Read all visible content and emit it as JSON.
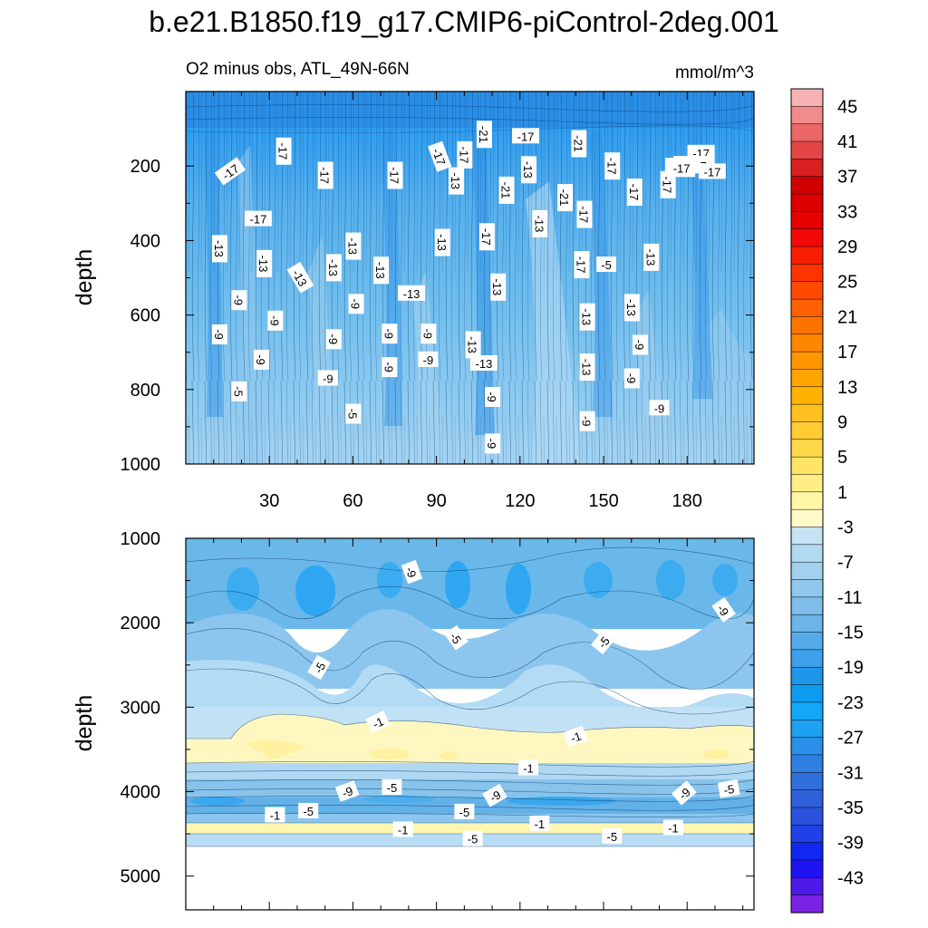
{
  "title": "b.e21.B1850.f19_g17.CMIP6-piControl-2deg.001",
  "chart_data": {
    "type": "contour",
    "title": "b.e21.B1850.f19_g17.CMIP6-piControl-2deg.001",
    "subtitle_left": "O2 minus obs, ATL_49N-66N",
    "units": "mmol/m^3",
    "xlim": [
      0,
      204
    ],
    "colorbar": {
      "levels": [
        -45,
        -43,
        -41,
        -39,
        -37,
        -35,
        -33,
        -31,
        -29,
        -27,
        -25,
        -23,
        -21,
        -19,
        -17,
        -15,
        -13,
        -11,
        -9,
        -7,
        -5,
        -3,
        -1,
        1,
        3,
        5,
        7,
        9,
        11,
        13,
        15,
        17,
        19,
        21,
        23,
        25,
        27,
        29,
        31,
        33,
        35,
        37,
        39,
        41,
        43,
        45
      ],
      "tick_labels": [
        "45",
        "41",
        "37",
        "33",
        "29",
        "25",
        "21",
        "17",
        "13",
        "9",
        "5",
        "1",
        "-3",
        "-7",
        "-11",
        "-15",
        "-19",
        "-23",
        "-27",
        "-31",
        "-35",
        "-39",
        "-43"
      ],
      "colors_top_to_bottom": [
        "#f7b3b3",
        "#f28c8c",
        "#eb6666",
        "#e34444",
        "#d92020",
        "#d10000",
        "#dc0000",
        "#e80000",
        "#f20808",
        "#fa1e00",
        "#ff3300",
        "#ff4a00",
        "#ff6000",
        "#ff7400",
        "#ff8600",
        "#ff9600",
        "#ffa500",
        "#ffb300",
        "#ffc020",
        "#ffcc33",
        "#ffd84a",
        "#ffe466",
        "#ffee85",
        "#fff6a8",
        "#fffbc8",
        "#c6e3f5",
        "#b2d9f2",
        "#a2d0ee",
        "#90c7ec",
        "#7ebdea",
        "#6bb4ea",
        "#55abea",
        "#3ca1ea",
        "#1e96ea",
        "#0e9cf0",
        "#12a8f5",
        "#1ca2f0",
        "#2a90e8",
        "#2f7fe0",
        "#3070dc",
        "#2f62da",
        "#2a52dc",
        "#2040e8",
        "#1028f0",
        "#1d14f2",
        "#4d1ae8",
        "#7a22e6"
      ]
    },
    "panels": [
      {
        "ylabel": "depth",
        "ylim": [
          1000,
          0
        ],
        "x_ticks": [
          30,
          60,
          90,
          120,
          150,
          180
        ],
        "y_ticks": [
          200,
          400,
          600,
          800,
          1000
        ],
        "contour_labels": [
          {
            "x": 16,
            "y": 215,
            "t": "-17",
            "r": -35
          },
          {
            "x": 35,
            "y": 160,
            "t": "-17",
            "r": 90
          },
          {
            "x": 26,
            "y": 342,
            "t": "-17",
            "r": 0
          },
          {
            "x": 12,
            "y": 422,
            "t": "-13",
            "r": 90
          },
          {
            "x": 28,
            "y": 462,
            "t": "-13",
            "r": 90
          },
          {
            "x": 41,
            "y": 500,
            "t": "-13",
            "r": 60
          },
          {
            "x": 19,
            "y": 560,
            "t": "-9",
            "r": 90
          },
          {
            "x": 12,
            "y": 652,
            "t": "-9",
            "r": 90
          },
          {
            "x": 32,
            "y": 615,
            "t": "-9",
            "r": 90
          },
          {
            "x": 27,
            "y": 720,
            "t": "-9",
            "r": 90
          },
          {
            "x": 19,
            "y": 805,
            "t": "-5",
            "r": 90
          },
          {
            "x": 50,
            "y": 225,
            "t": "-17",
            "r": 90
          },
          {
            "x": 60,
            "y": 415,
            "t": "-13",
            "r": 90
          },
          {
            "x": 53,
            "y": 473,
            "t": "-13",
            "r": 90
          },
          {
            "x": 61,
            "y": 570,
            "t": "-9",
            "r": 90
          },
          {
            "x": 53,
            "y": 665,
            "t": "-9",
            "r": 90
          },
          {
            "x": 51,
            "y": 770,
            "t": "-9",
            "r": 0
          },
          {
            "x": 60,
            "y": 865,
            "t": "-5",
            "r": 90
          },
          {
            "x": 75,
            "y": 225,
            "t": "-17",
            "r": 90
          },
          {
            "x": 70,
            "y": 480,
            "t": "-13",
            "r": 90
          },
          {
            "x": 81,
            "y": 542,
            "t": "-13",
            "r": 0
          },
          {
            "x": 73,
            "y": 650,
            "t": "-9",
            "r": 90
          },
          {
            "x": 73,
            "y": 740,
            "t": "-9",
            "r": 90
          },
          {
            "x": 91,
            "y": 175,
            "t": "-17",
            "r": 70
          },
          {
            "x": 100,
            "y": 170,
            "t": "-17",
            "r": 90
          },
          {
            "x": 97,
            "y": 240,
            "t": "-13",
            "r": 90
          },
          {
            "x": 92,
            "y": 405,
            "t": "-13",
            "r": 90
          },
          {
            "x": 87,
            "y": 650,
            "t": "-9",
            "r": 90
          },
          {
            "x": 87,
            "y": 720,
            "t": "-9",
            "r": 0
          },
          {
            "x": 107,
            "y": 115,
            "t": "-21",
            "r": 90
          },
          {
            "x": 108,
            "y": 390,
            "t": "-17",
            "r": 90
          },
          {
            "x": 103,
            "y": 680,
            "t": "-13",
            "r": 90
          },
          {
            "x": 107,
            "y": 730,
            "t": "-13",
            "r": 0
          },
          {
            "x": 112,
            "y": 525,
            "t": "-13",
            "r": 90
          },
          {
            "x": 110,
            "y": 820,
            "t": "-9",
            "r": 90
          },
          {
            "x": 110,
            "y": 945,
            "t": "-9",
            "r": 90
          },
          {
            "x": 122,
            "y": 120,
            "t": "-17",
            "r": 0
          },
          {
            "x": 123,
            "y": 210,
            "t": "-13",
            "r": 90
          },
          {
            "x": 115,
            "y": 265,
            "t": "-21",
            "r": 90
          },
          {
            "x": 127,
            "y": 355,
            "t": "-13",
            "r": 90
          },
          {
            "x": 141,
            "y": 140,
            "t": "-21",
            "r": 90
          },
          {
            "x": 136,
            "y": 285,
            "t": "-21",
            "r": 90
          },
          {
            "x": 143,
            "y": 330,
            "t": "-17",
            "r": 90
          },
          {
            "x": 142,
            "y": 465,
            "t": "-17",
            "r": 90
          },
          {
            "x": 151,
            "y": 465,
            "t": "-5",
            "r": 0
          },
          {
            "x": 144,
            "y": 605,
            "t": "-13",
            "r": 90
          },
          {
            "x": 144,
            "y": 740,
            "t": "-13",
            "r": 90
          },
          {
            "x": 144,
            "y": 885,
            "t": "-9",
            "r": 90
          },
          {
            "x": 153,
            "y": 200,
            "t": "-17",
            "r": 90
          },
          {
            "x": 167,
            "y": 445,
            "t": "-13",
            "r": 90
          },
          {
            "x": 161,
            "y": 270,
            "t": "-17",
            "r": 90
          },
          {
            "x": 160,
            "y": 580,
            "t": "-13",
            "r": 90
          },
          {
            "x": 163,
            "y": 680,
            "t": "-9",
            "r": 90
          },
          {
            "x": 160,
            "y": 770,
            "t": "-9",
            "r": 90
          },
          {
            "x": 170,
            "y": 850,
            "t": "-9",
            "r": 0
          },
          {
            "x": 177,
            "y": 200,
            "t": "-17",
            "r": 0
          },
          {
            "x": 173,
            "y": 250,
            "t": "-17",
            "r": 90
          },
          {
            "x": 179,
            "y": 200,
            "t": "-17",
            "r": 0
          },
          {
            "x": 185,
            "y": 165,
            "t": "-17",
            "r": 0
          },
          {
            "x": 185,
            "y": 195,
            "t": "-17",
            "r": 0
          },
          {
            "x": 178,
            "y": 210,
            "t": "-17",
            "r": 0
          },
          {
            "x": 184,
            "y": 200,
            "t": "-17",
            "r": 0
          },
          {
            "x": 180,
            "y": 195,
            "t": "-17",
            "r": 0
          },
          {
            "x": 178,
            "y": 205,
            "t": "-17",
            "r": 0
          },
          {
            "x": 189,
            "y": 215,
            "t": "-17",
            "r": 0
          }
        ]
      },
      {
        "ylabel": "depth",
        "ylim": [
          5400,
          1000
        ],
        "x_ticks": [
          30,
          60,
          90,
          120,
          150,
          180
        ],
        "y_ticks": [
          1000,
          2000,
          3000,
          4000,
          5000
        ],
        "contour_labels": [
          {
            "x": 81,
            "y": 1400,
            "t": "-9",
            "r": 70
          },
          {
            "x": 193,
            "y": 1850,
            "t": "-9",
            "r": 55
          },
          {
            "x": 97,
            "y": 2180,
            "t": "-5",
            "r": 55
          },
          {
            "x": 150,
            "y": 2230,
            "t": "-5",
            "r": -50
          },
          {
            "x": 48,
            "y": 2530,
            "t": "-5",
            "r": -60
          },
          {
            "x": 69,
            "y": 3180,
            "t": "-1",
            "r": -25
          },
          {
            "x": 140,
            "y": 3350,
            "t": "-1",
            "r": -20
          },
          {
            "x": 123,
            "y": 3720,
            "t": "-1",
            "r": 0
          },
          {
            "x": 58,
            "y": 4000,
            "t": "-9",
            "r": -20
          },
          {
            "x": 74,
            "y": 3950,
            "t": "-5",
            "r": 0
          },
          {
            "x": 111,
            "y": 4050,
            "t": "-9",
            "r": -30
          },
          {
            "x": 179,
            "y": 4020,
            "t": "-9",
            "r": -40
          },
          {
            "x": 195,
            "y": 3970,
            "t": "-5",
            "r": -10
          },
          {
            "x": 32,
            "y": 4280,
            "t": "-1",
            "r": 0
          },
          {
            "x": 44,
            "y": 4230,
            "t": "-5",
            "r": 0
          },
          {
            "x": 100,
            "y": 4240,
            "t": "-5",
            "r": 0
          },
          {
            "x": 78,
            "y": 4450,
            "t": "-1",
            "r": 0
          },
          {
            "x": 103,
            "y": 4560,
            "t": "-5",
            "r": 0
          },
          {
            "x": 127,
            "y": 4380,
            "t": "-1",
            "r": 0
          },
          {
            "x": 153,
            "y": 4530,
            "t": "-5",
            "r": 0
          },
          {
            "x": 175,
            "y": 4430,
            "t": "-1",
            "r": 0
          }
        ]
      }
    ]
  }
}
